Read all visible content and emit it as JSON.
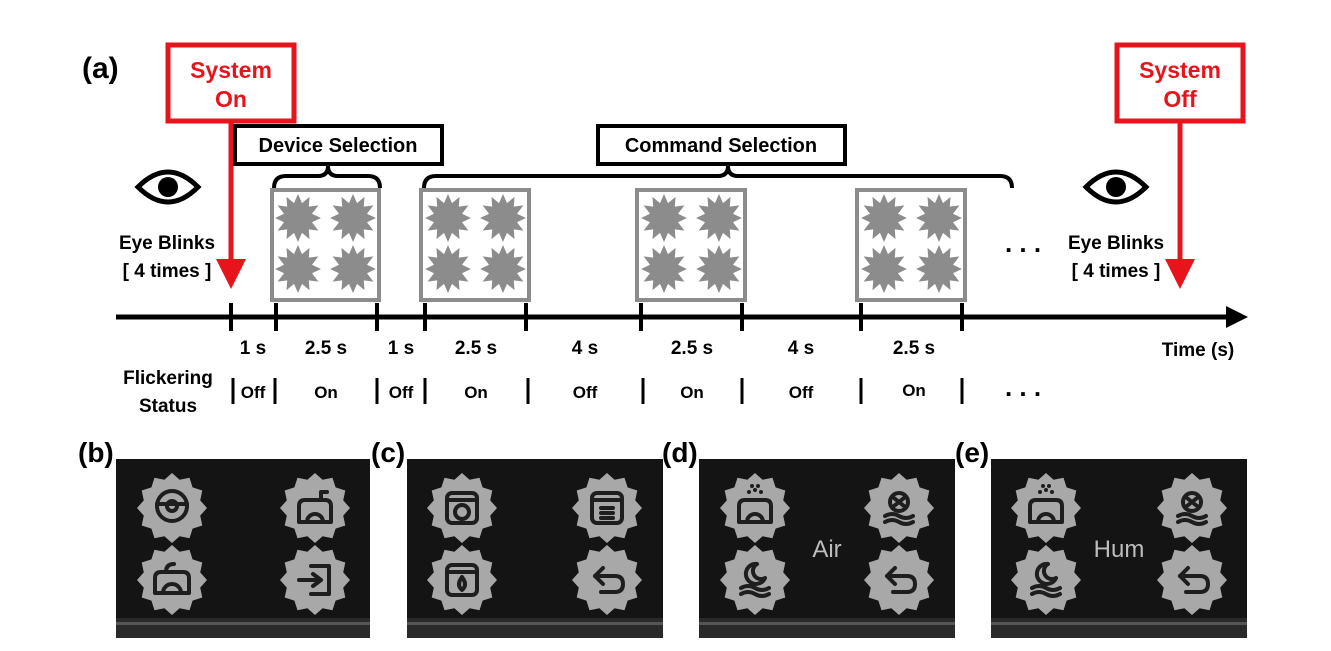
{
  "figure": {
    "panel_a_label": "(a)",
    "system_on": [
      "System",
      "On"
    ],
    "system_off": [
      "System",
      "Off"
    ],
    "device_selection": "Device Selection",
    "command_selection": "Command Selection",
    "eye_blinks_left": [
      "Eye Blinks",
      "[ 4 times ]"
    ],
    "eye_blinks_right": [
      "Eye Blinks",
      "[ 4 times ]"
    ],
    "ellipsis": ". . .",
    "time_axis_label": "Time (s)",
    "flickering_status": [
      "Flickering",
      "Status"
    ],
    "durations": [
      "1 s",
      "2.5 s",
      "1 s",
      "2.5 s",
      "4 s",
      "2.5 s",
      "4 s",
      "2.5 s"
    ],
    "statuses": [
      "Off",
      "On",
      "Off",
      "On",
      "Off",
      "On",
      "Off",
      "On"
    ],
    "panels": [
      {
        "label": "(b)",
        "center_text": "",
        "icons": [
          "robot-vacuum-icon",
          "humidifier-icon",
          "air-purifier-icon",
          "exit-icon"
        ]
      },
      {
        "label": "(c)",
        "center_text": "",
        "icons": [
          "power-icon",
          "menu-icon",
          "water-drop-icon",
          "back-arrow-icon"
        ]
      },
      {
        "label": "(d)",
        "center_text": "Air",
        "icons": [
          "humidifier-icon",
          "fan-mode-icon",
          "sleep-mode-icon",
          "back-arrow-icon"
        ]
      },
      {
        "label": "(e)",
        "center_text": "Hum",
        "icons": [
          "humidifier-icon",
          "fan-mode-icon",
          "sleep-mode-icon",
          "back-arrow-icon"
        ]
      }
    ],
    "colors": {
      "accent_red": "#e8141b",
      "stimulus_gray": "#8c8c8c",
      "panel_bg": "#141414",
      "badge_gray": "#a8a8a8"
    }
  }
}
